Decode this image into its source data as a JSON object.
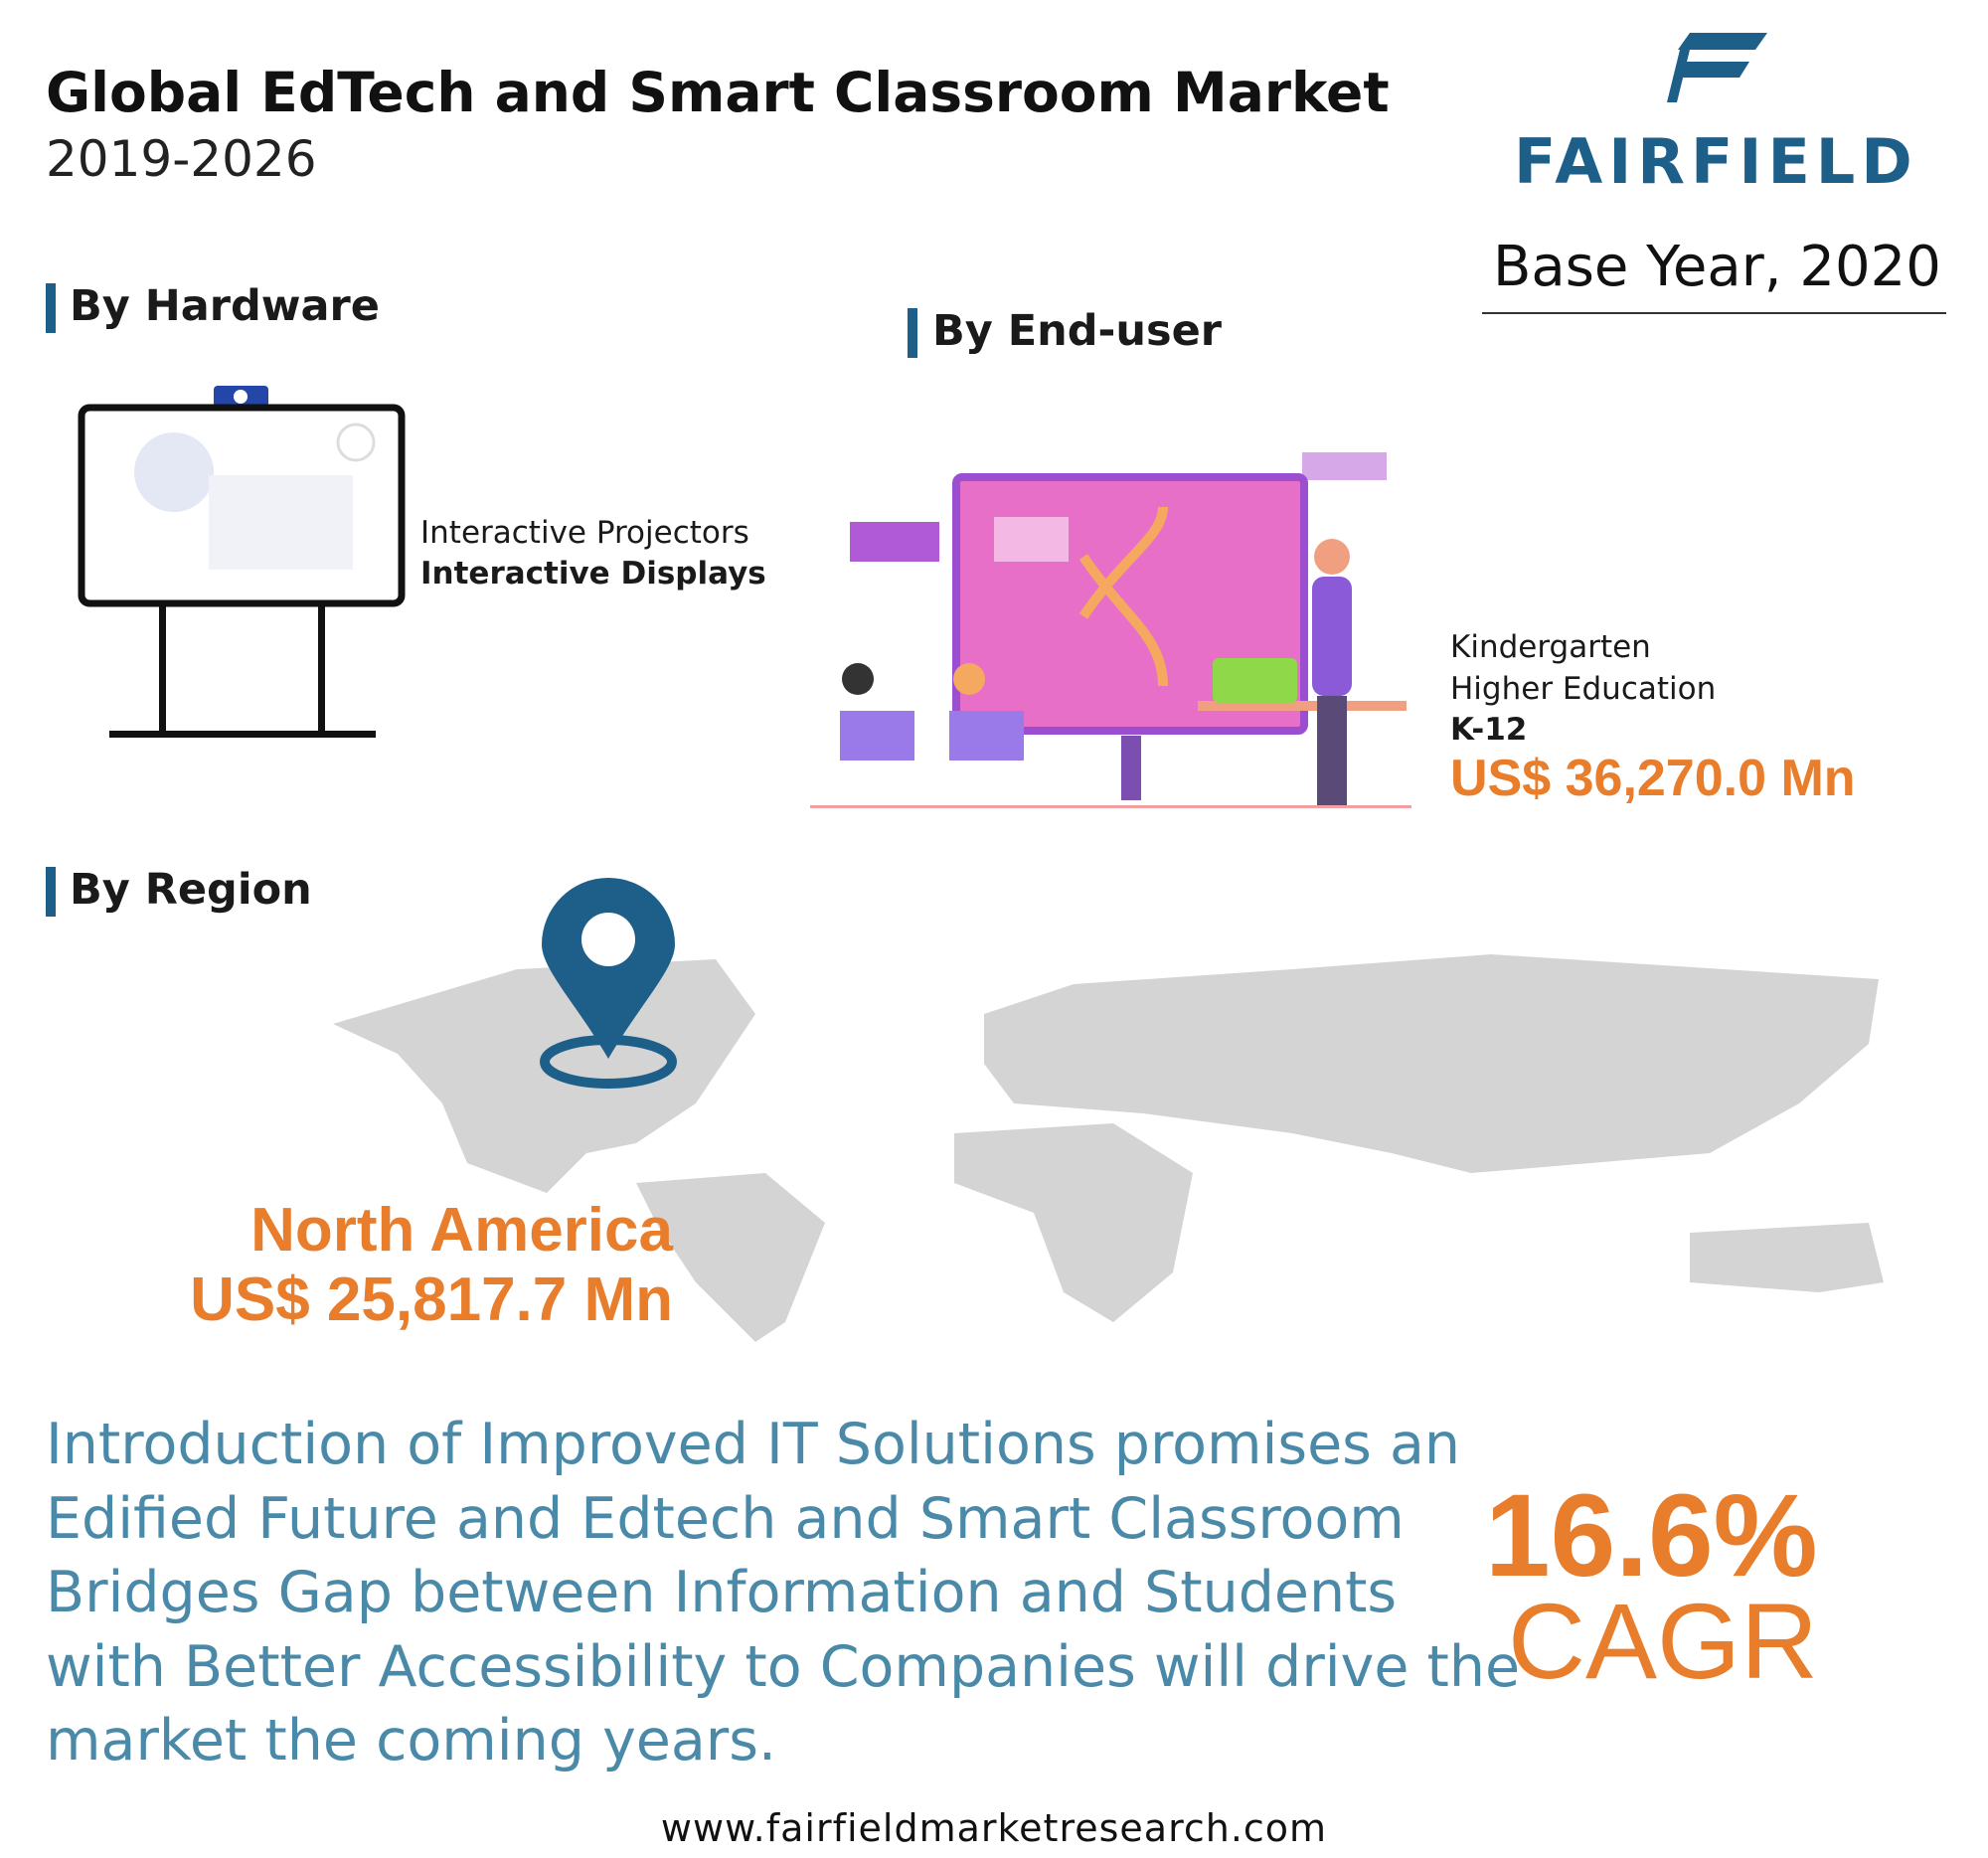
{
  "header": {
    "title": "Global EdTech and Smart Classroom Market",
    "subtitle": "2019-2026"
  },
  "logo": {
    "text": "FAIRFIELD"
  },
  "base_year": "Base Year, 2020",
  "hardware": {
    "heading": "By Hardware",
    "items": [
      "Interactive Projectors",
      "Interactive Displays"
    ]
  },
  "end_user": {
    "heading": "By End-user",
    "items": [
      "Kindergarten",
      "Higher Education",
      "K-12"
    ],
    "value": "US$ 36,270.0 Mn"
  },
  "region": {
    "heading": "By Region",
    "name": "North America",
    "value": "US$ 25,817.7 Mn"
  },
  "summary": {
    "lines": [
      "Introduction of Improved IT Solutions promises an",
      "Edified Future and Edtech and Smart Classroom",
      "Bridges Gap between Information and Students",
      "with Better Accessibility to Companies will drive the",
      "market the coming years."
    ]
  },
  "cagr": {
    "value": "16.6%",
    "label": "CAGR"
  },
  "footer": {
    "url": "www.fairfieldmarketresearch.com"
  }
}
